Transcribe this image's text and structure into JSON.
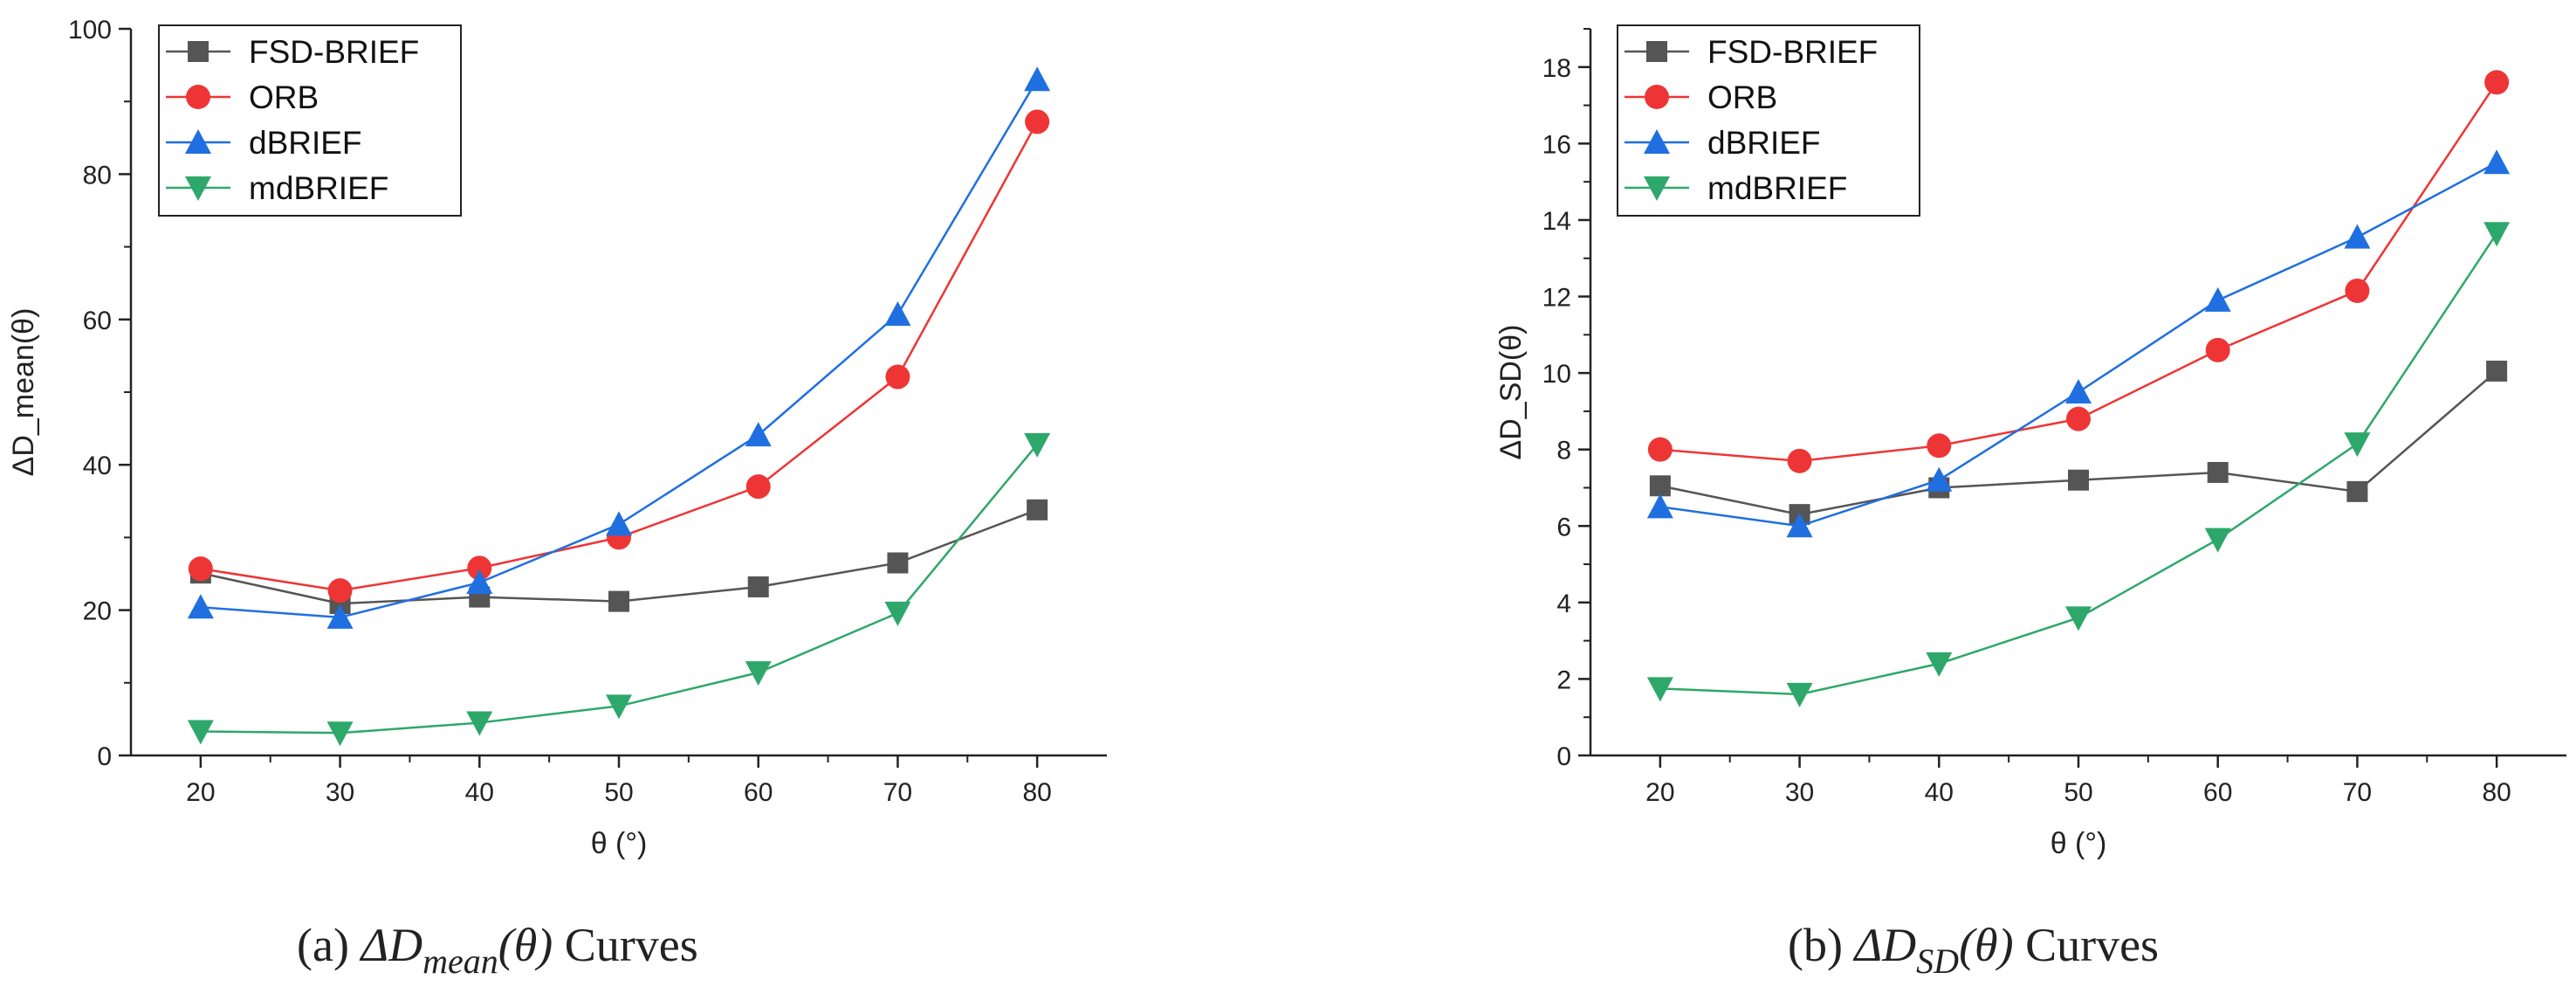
{
  "chart_data": [
    {
      "type": "line",
      "x": [
        20,
        30,
        40,
        50,
        60,
        70,
        80
      ],
      "xlabel": "θ (°)",
      "ylabel": "ΔD_mean(θ)",
      "xlim": [
        15,
        85
      ],
      "ylim": [
        0,
        100
      ],
      "xticks": [
        20,
        30,
        40,
        50,
        60,
        70,
        80
      ],
      "yticks": [
        0,
        20,
        40,
        60,
        80,
        100
      ],
      "legend_position": "top-left",
      "series": [
        {
          "name": "FSD-BRIEF",
          "color": "#555555",
          "marker": "square",
          "values": [
            25.1,
            20.9,
            21.8,
            21.2,
            23.2,
            26.5,
            33.8
          ]
        },
        {
          "name": "ORB",
          "color": "#ee3535",
          "marker": "circle",
          "values": [
            25.7,
            22.7,
            25.8,
            30.0,
            37.0,
            52.1,
            87.2
          ]
        },
        {
          "name": "dBRIEF",
          "color": "#1f6fe0",
          "marker": "triangle-up",
          "values": [
            20.4,
            19.0,
            23.8,
            31.8,
            44.1,
            60.7,
            93.0
          ]
        },
        {
          "name": "mdBRIEF",
          "color": "#2ea86a",
          "marker": "triangle-down",
          "values": [
            3.3,
            3.1,
            4.5,
            6.8,
            11.4,
            19.6,
            42.8
          ]
        }
      ],
      "caption": {
        "prefix": "(a)",
        "symbol": "ΔD",
        "subscript": "mean",
        "arg": "(θ)",
        "suffix": "Curves"
      }
    },
    {
      "type": "line",
      "x": [
        20,
        30,
        40,
        50,
        60,
        70,
        80
      ],
      "xlabel": "θ (°)",
      "ylabel": "ΔD_SD(θ)",
      "xlim": [
        15,
        85
      ],
      "ylim": [
        0,
        19
      ],
      "xticks": [
        20,
        30,
        40,
        50,
        60,
        70,
        80
      ],
      "yticks": [
        0,
        2,
        4,
        6,
        8,
        10,
        12,
        14,
        16,
        18
      ],
      "legend_position": "top-left",
      "series": [
        {
          "name": "FSD-BRIEF",
          "color": "#555555",
          "marker": "square",
          "values": [
            7.05,
            6.3,
            7.0,
            7.2,
            7.4,
            6.9,
            10.05
          ]
        },
        {
          "name": "ORB",
          "color": "#ee3535",
          "marker": "circle",
          "values": [
            8.0,
            7.7,
            8.1,
            8.8,
            10.6,
            12.15,
            17.6
          ]
        },
        {
          "name": "dBRIEF",
          "color": "#1f6fe0",
          "marker": "triangle-up",
          "values": [
            6.5,
            6.0,
            7.2,
            9.5,
            11.9,
            13.55,
            15.5
          ]
        },
        {
          "name": "mdBRIEF",
          "color": "#2ea86a",
          "marker": "triangle-down",
          "values": [
            1.75,
            1.6,
            2.4,
            3.6,
            5.65,
            8.15,
            13.65
          ]
        }
      ],
      "caption": {
        "prefix": "(b)",
        "symbol": "ΔD",
        "subscript": "SD",
        "arg": "(θ)",
        "suffix": "Curves"
      }
    }
  ]
}
